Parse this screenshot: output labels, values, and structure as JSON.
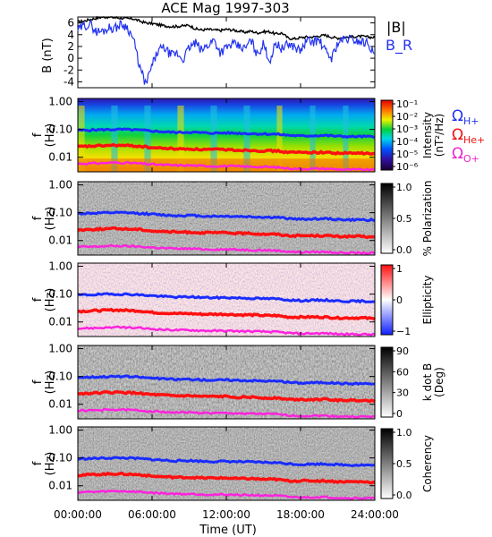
{
  "chart_data": [
    {
      "type": "line",
      "title": "ACE Mag 1997-303",
      "ylabel": "B (nT)",
      "ylim": [
        -5,
        7
      ],
      "yticks": [
        "6",
        "4",
        "2",
        "0",
        "-2",
        "-4"
      ],
      "ytick_values": [
        6,
        4,
        2,
        0,
        -2,
        -4
      ],
      "legend": "right",
      "series": [
        {
          "name": "|B|",
          "color": "#000000",
          "x_hours": [
            0,
            0.5,
            1,
            1.5,
            2,
            2.5,
            3,
            3.5,
            4,
            4.5,
            5,
            5.5,
            6,
            6.5,
            7,
            7.5,
            8,
            8.5,
            9,
            9.5,
            10,
            10.5,
            11,
            11.5,
            12,
            12.5,
            13,
            13.5,
            14,
            14.5,
            15,
            15.5,
            16,
            16.5,
            17,
            17.5,
            18,
            18.5,
            19,
            19.5,
            20,
            20.5,
            21,
            21.5,
            22,
            22.5,
            23,
            23.5,
            24
          ],
          "values": [
            6.2,
            6.3,
            6.6,
            6.8,
            7.0,
            7.0,
            6.9,
            6.8,
            6.7,
            6.7,
            6.3,
            6.0,
            5.9,
            5.7,
            5.5,
            5.4,
            5.4,
            5.5,
            5.6,
            5.0,
            4.8,
            4.9,
            4.8,
            4.7,
            4.9,
            4.8,
            4.6,
            4.4,
            4.6,
            4.3,
            4.5,
            4.5,
            4.1,
            4.3,
            3.4,
            3.3,
            3.5,
            3.6,
            3.6,
            3.8,
            3.9,
            3.6,
            3.4,
            3.6,
            3.6,
            3.7,
            3.7,
            3.6,
            3.5
          ]
        },
        {
          "name": "B_R",
          "color": "#2233ee",
          "x_hours": [
            0,
            0.5,
            1,
            1.5,
            2,
            2.5,
            3,
            3.5,
            4,
            4.5,
            5,
            5.5,
            6,
            6.5,
            7,
            7.5,
            8,
            8.5,
            9,
            9.5,
            10,
            10.5,
            11,
            11.5,
            12,
            12.5,
            13,
            13.5,
            14,
            14.5,
            15,
            15.5,
            16,
            16.5,
            17,
            17.5,
            18,
            18.5,
            19,
            19.5,
            20,
            20.5,
            21,
            21.5,
            22,
            22.5,
            23,
            23.5,
            24
          ],
          "values": [
            4.8,
            5.5,
            5.8,
            4.5,
            4.6,
            5.2,
            5.1,
            5.8,
            5.3,
            3.2,
            -1.5,
            -4.5,
            -1.2,
            1.3,
            1.8,
            0.5,
            0.8,
            -0.2,
            1.8,
            2.6,
            1.3,
            2.2,
            3.2,
            1.0,
            1.8,
            2.4,
            2.0,
            1.6,
            3.1,
            0.6,
            2.4,
            -0.5,
            2.6,
            1.6,
            2.4,
            2.0,
            1.2,
            3.0,
            2.8,
            3.1,
            1.2,
            0.0,
            2.6,
            3.2,
            3.3,
            3.0,
            2.8,
            2.6,
            0.2
          ]
        }
      ]
    },
    {
      "type": "heatmap",
      "ylabel": "f (Hz)",
      "y_scale": "log",
      "ylim": [
        0.003,
        1.3
      ],
      "yticks": [
        "1.00",
        "0.10",
        "0.01"
      ],
      "colorbar_label": "Intensity (nT²/Hz)",
      "colorbar_ticks": [
        "10⁻¹",
        "10⁻²",
        "10⁻³",
        "10⁻⁴",
        "10⁻⁵",
        "10⁻⁶"
      ],
      "colormap": "rainbow",
      "legend_lines": [
        {
          "label": "Ω",
          "sub": "H+",
          "color": "#2233ee"
        },
        {
          "label": "Ω",
          "sub": "He+",
          "color": "#ee1111"
        },
        {
          "label": "Ω",
          "sub": "O+",
          "color": "#ee22cc"
        }
      ]
    },
    {
      "type": "heatmap",
      "ylabel": "f (Hz)",
      "y_scale": "log",
      "colorbar_label": "% Polarization",
      "colorbar_ticks": [
        "1.0",
        "0.5",
        "0.0"
      ],
      "colormap": "gray"
    },
    {
      "type": "heatmap",
      "ylabel": "f (Hz)",
      "y_scale": "log",
      "colorbar_label": "Ellipticity",
      "colorbar_ticks": [
        "1",
        "0",
        "−1"
      ],
      "colormap": "blue-white-red"
    },
    {
      "type": "heatmap",
      "ylabel": "f (Hz)",
      "y_scale": "log",
      "colorbar_label": "k dot B (Deg)",
      "colorbar_ticks": [
        "90",
        "60",
        "30",
        "0"
      ],
      "colormap": "gray"
    },
    {
      "type": "heatmap",
      "ylabel": "f (Hz)",
      "y_scale": "log",
      "colorbar_label": "Coherency",
      "colorbar_ticks": [
        "1.0",
        "0.5",
        "0.0"
      ],
      "colormap": "gray"
    }
  ],
  "xaxis": {
    "label": "Time (UT)",
    "ticks": [
      "00:00:00",
      "06:00:00",
      "12:00:00",
      "18:00:00",
      "24:00:00"
    ],
    "tick_hours": [
      0,
      6,
      12,
      18,
      24
    ]
  },
  "cyclotron": {
    "x_hours": [
      0,
      1,
      2,
      3,
      4,
      5,
      6,
      7,
      8,
      9,
      10,
      11,
      12,
      13,
      14,
      15,
      16,
      17,
      18,
      19,
      20,
      21,
      22,
      23,
      24
    ],
    "H_plus_hz": [
      0.093,
      0.095,
      0.098,
      0.1,
      0.099,
      0.094,
      0.088,
      0.082,
      0.078,
      0.08,
      0.076,
      0.074,
      0.075,
      0.073,
      0.071,
      0.069,
      0.068,
      0.062,
      0.058,
      0.06,
      0.061,
      0.057,
      0.055,
      0.056,
      0.054
    ],
    "He_plus_hz": [
      0.024,
      0.025,
      0.026,
      0.027,
      0.026,
      0.025,
      0.022,
      0.021,
      0.02,
      0.02,
      0.019,
      0.019,
      0.019,
      0.018,
      0.018,
      0.017,
      0.017,
      0.015,
      0.015,
      0.015,
      0.015,
      0.014,
      0.014,
      0.014,
      0.013
    ],
    "O_plus_hz": [
      0.0059,
      0.006,
      0.0062,
      0.0064,
      0.0063,
      0.006,
      0.0056,
      0.0053,
      0.0051,
      0.0051,
      0.0049,
      0.0048,
      0.0048,
      0.0047,
      0.0046,
      0.0045,
      0.0044,
      0.004,
      0.0038,
      0.0039,
      0.0039,
      0.0037,
      0.0036,
      0.0036,
      0.0035
    ]
  }
}
